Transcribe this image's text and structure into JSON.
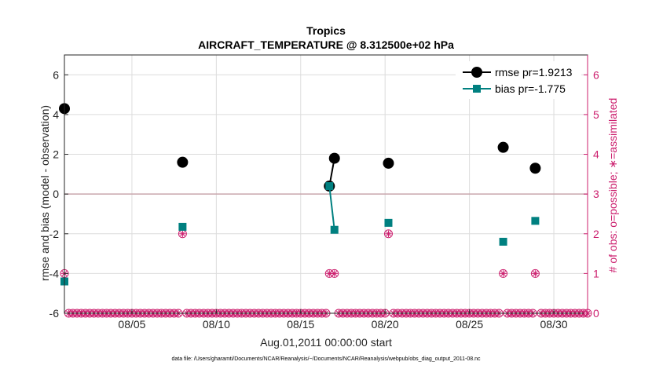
{
  "chart_data": {
    "type": "line",
    "title": "Tropics",
    "subtitle": "AIRCRAFT_TEMPERATURE @ 8.312500e+02 hPa",
    "xlabel": "Aug.01,2011 00:00:00 start",
    "ylabel": "rmse and bias (model - observation)",
    "ylabel_right": "# of obs: o=possible; ∗=assimilated",
    "footnote": "data file: /Users/gharamti/Documents/NCAR/Reanalysis/~/Documents/NCAR/Reanalysis/webpub/obs_diag_output_2011-08.nc",
    "xlim": [
      1.0,
      32.0
    ],
    "ylim": [
      -6,
      7
    ],
    "ylim_right": [
      0,
      6.5
    ],
    "x_tick_values": [
      5,
      10,
      15,
      20,
      25,
      30
    ],
    "x_tick_labels": [
      "08/05",
      "08/10",
      "08/15",
      "08/20",
      "08/25",
      "08/30"
    ],
    "y_tick_values": [
      -6,
      -4,
      -2,
      0,
      2,
      4,
      6
    ],
    "y_tick_labels": [
      "-6",
      "-4",
      "-2",
      "0",
      "2",
      "4",
      "6"
    ],
    "y_right_tick_values": [
      0,
      1,
      2,
      3,
      4,
      5,
      6
    ],
    "y_right_tick_labels": [
      "0",
      "1",
      "2",
      "3",
      "4",
      "5",
      "6"
    ],
    "grid": true,
    "legend_position": "top-right",
    "zero_line": 0,
    "series": [
      {
        "name": "rmse pr=1.9213",
        "color": "#000000",
        "marker": "circle",
        "x": [
          1.0,
          8.0,
          16.7,
          17.0,
          20.2,
          27.0,
          28.9
        ],
        "y": [
          4.3,
          1.6,
          0.4,
          1.8,
          1.55,
          2.35,
          1.3
        ],
        "connect_pairs": [
          [
            2,
            3
          ]
        ]
      },
      {
        "name": "bias pr=-1.775",
        "color": "#008080",
        "marker": "square",
        "x": [
          1.0,
          8.0,
          16.7,
          17.0,
          20.2,
          27.0,
          28.9
        ],
        "y": [
          -4.4,
          -1.65,
          0.4,
          -1.8,
          -1.45,
          -2.4,
          -1.35
        ],
        "connect_pairs": [
          [
            2,
            3
          ]
        ]
      }
    ],
    "obs_counts": {
      "color": "#cc1f6e",
      "possible_x": [
        1.0,
        8.0,
        16.7,
        17.0,
        20.2,
        27.0,
        28.9
      ],
      "possible_count": [
        1,
        2,
        1,
        1,
        2,
        1,
        1
      ],
      "assimilated_x": [
        1.0,
        8.0,
        16.7,
        17.0,
        20.2,
        27.0,
        28.9
      ],
      "assimilated_count": [
        1,
        2,
        1,
        1,
        2,
        1,
        1
      ],
      "zero_x_start": 1.25,
      "zero_x_end": 32.0,
      "zero_x_step": 0.25
    }
  }
}
